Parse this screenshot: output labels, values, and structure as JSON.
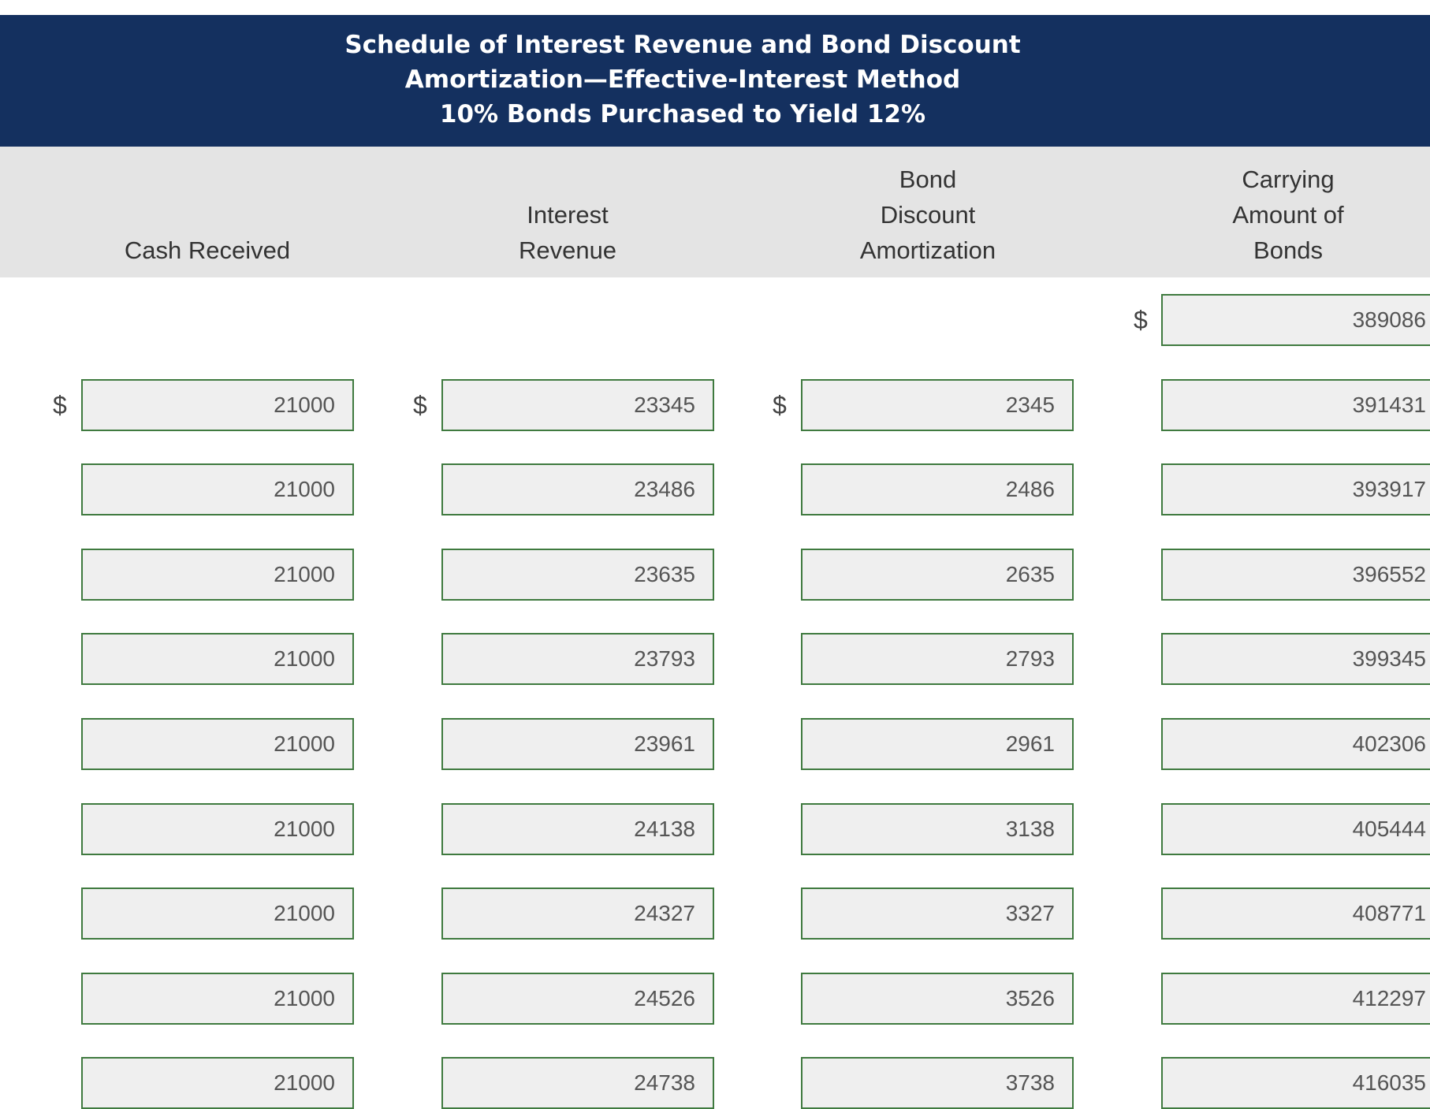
{
  "header": {
    "title_lines": [
      "Schedule of Interest Revenue and Bond Discount",
      "Amortization—Effective-Interest Method",
      "10% Bonds Purchased to Yield 12%"
    ]
  },
  "table": {
    "columns": [
      [
        "Cash Received"
      ],
      [
        "Interest",
        "Revenue"
      ],
      [
        "Bond",
        "Discount",
        "Amortization"
      ],
      [
        "Carrying",
        "Amount of",
        "Bonds"
      ]
    ],
    "currency_symbol": "$",
    "opening_carrying_amount": 389086,
    "rows": [
      [
        21000,
        23345,
        2345,
        391431
      ],
      [
        21000,
        23486,
        2486,
        393917
      ],
      [
        21000,
        23635,
        2635,
        396552
      ],
      [
        21000,
        23793,
        2793,
        399345
      ],
      [
        21000,
        23961,
        2961,
        402306
      ],
      [
        21000,
        24138,
        3138,
        405444
      ],
      [
        21000,
        24327,
        3327,
        408771
      ],
      [
        21000,
        24526,
        3526,
        412297
      ],
      [
        21000,
        24738,
        3738,
        416035
      ]
    ]
  }
}
